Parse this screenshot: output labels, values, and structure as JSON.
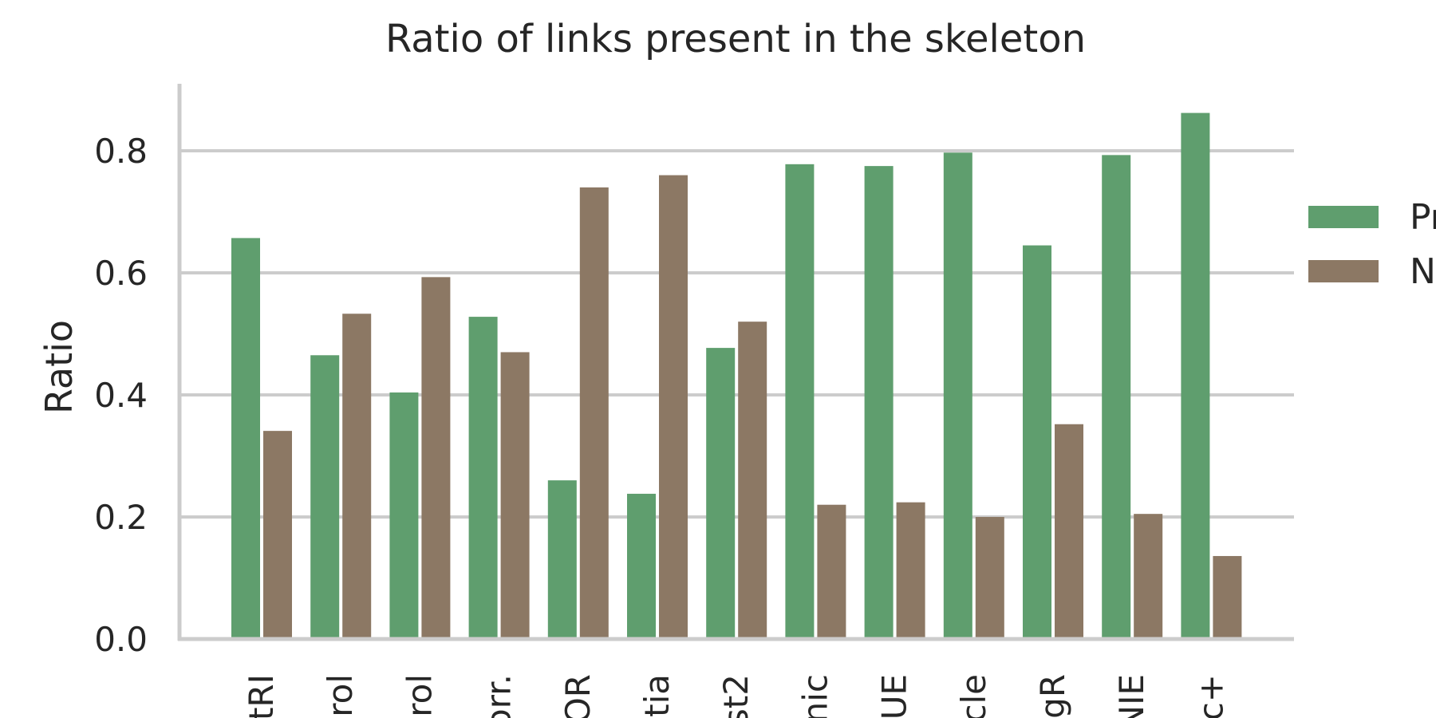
{
  "chart_data": {
    "type": "bar",
    "title": "Ratio of links present in the skeleton",
    "xlabel": "",
    "ylabel": "Ratio",
    "ylim": [
      0,
      0.9
    ],
    "yticks": [
      0.0,
      0.2,
      0.4,
      0.6,
      0.8
    ],
    "ytick_labels": [
      "0.0",
      "0.2",
      "0.4",
      "0.6",
      "0.8"
    ],
    "grid": "horizontal",
    "legend_position": "right (cropped)",
    "categories": [
      "tRI",
      "rol",
      "rol",
      "orr.",
      "OR",
      "tia",
      "st2",
      "nic",
      "UE",
      "cle",
      "gR",
      "NIE",
      "c+"
    ],
    "series": [
      {
        "name": "Pr",
        "color": "#5f9e6e",
        "values": [
          0.657,
          0.465,
          0.404,
          0.528,
          0.26,
          0.238,
          0.477,
          0.778,
          0.775,
          0.797,
          0.645,
          0.793,
          0.862
        ]
      },
      {
        "name": "N",
        "color": "#8c7864",
        "values": [
          0.341,
          0.533,
          0.593,
          0.47,
          0.74,
          0.76,
          0.52,
          0.22,
          0.224,
          0.2,
          0.352,
          0.205,
          0.136
        ]
      }
    ]
  }
}
